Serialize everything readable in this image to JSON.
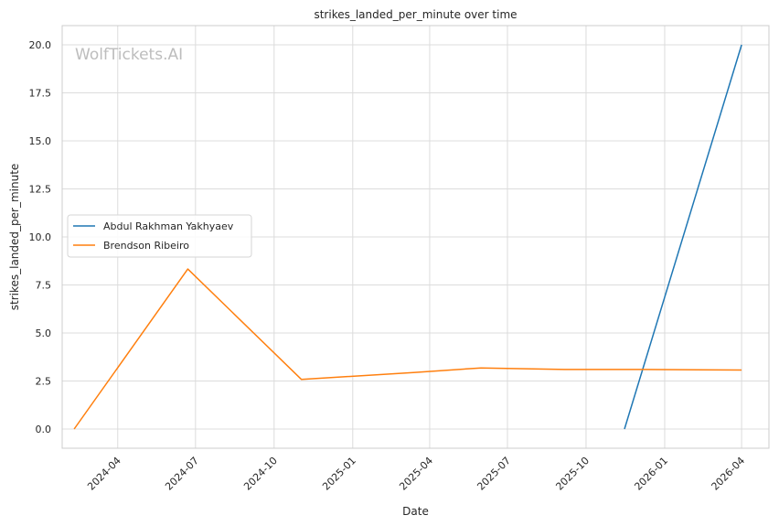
{
  "chart_data": {
    "type": "line",
    "title": "strikes_landed_per_minute over time",
    "xlabel": "Date",
    "ylabel": "strikes_landed_per_minute",
    "watermark": "WolfTickets.AI",
    "x_ticks": [
      "2024-04",
      "2024-07",
      "2024-10",
      "2025-01",
      "2025-04",
      "2025-07",
      "2025-10",
      "2026-01",
      "2026-04"
    ],
    "x_tick_dates": [
      "2024-04-01",
      "2024-07-01",
      "2024-10-01",
      "2025-01-01",
      "2025-04-01",
      "2025-07-01",
      "2025-10-01",
      "2026-01-01",
      "2026-04-01"
    ],
    "y_ticks": [
      "0.0",
      "2.5",
      "5.0",
      "7.5",
      "10.0",
      "12.5",
      "15.0",
      "17.5",
      "20.0"
    ],
    "y_tick_values": [
      0,
      2.5,
      5,
      7.5,
      10,
      12.5,
      15,
      17.5,
      20
    ],
    "ylim": [
      -1.0,
      21.0
    ],
    "xlim": [
      "2024-01-27",
      "2026-05-03"
    ],
    "grid": true,
    "legend_position": "center-left",
    "series": [
      {
        "name": "Abdul Rakhman Yakhyaev",
        "color": "#1f77b4",
        "points": [
          {
            "x": "2025-11-15",
            "y": 0.0
          },
          {
            "x": "2026-04-01",
            "y": 20.0
          }
        ]
      },
      {
        "name": "Brendson Ribeiro",
        "color": "#ff7f0e",
        "points": [
          {
            "x": "2024-02-10",
            "y": 0.0
          },
          {
            "x": "2024-06-22",
            "y": 8.33
          },
          {
            "x": "2024-11-02",
            "y": 2.58
          },
          {
            "x": "2025-03-15",
            "y": 2.95
          },
          {
            "x": "2025-05-31",
            "y": 3.18
          },
          {
            "x": "2025-09-06",
            "y": 3.1
          },
          {
            "x": "2025-12-06",
            "y": 3.1
          },
          {
            "x": "2026-04-01",
            "y": 3.07
          }
        ]
      }
    ]
  }
}
